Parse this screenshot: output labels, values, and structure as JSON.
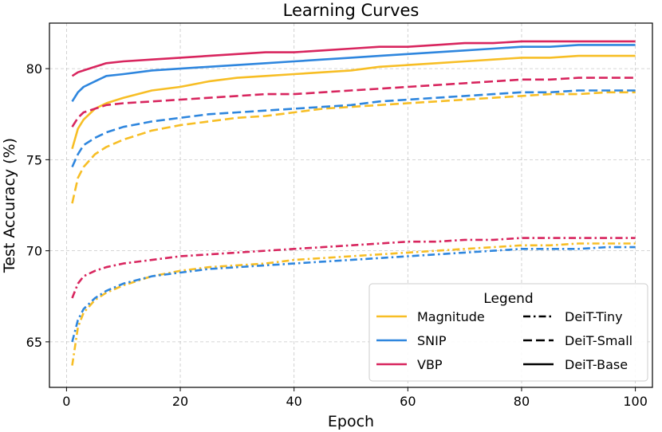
{
  "chart_data": {
    "type": "line",
    "title": "Learning Curves",
    "xlabel": "Epoch",
    "ylabel": "Test Accuracy (%)",
    "xlim": [
      -3,
      103
    ],
    "ylim": [
      62.5,
      82.5
    ],
    "xticks": [
      0,
      20,
      40,
      60,
      80,
      100
    ],
    "yticks": [
      65,
      70,
      75,
      80
    ],
    "grid": true,
    "legend": {
      "title": "Legend",
      "placement": "lower-right",
      "methods": [
        {
          "name": "Magnitude",
          "color": "#F7BE25"
        },
        {
          "name": "SNIP",
          "color": "#2E86DE"
        },
        {
          "name": "VBP",
          "color": "#D8255E"
        }
      ],
      "models": [
        {
          "name": "DeiT-Tiny",
          "style": "dashdot"
        },
        {
          "name": "DeiT-Small",
          "style": "dashed"
        },
        {
          "name": "DeiT-Base",
          "style": "solid"
        }
      ]
    },
    "series": [
      {
        "name": "Magnitude DeiT-Base",
        "method": "Magnitude",
        "model": "DeiT-Base",
        "color": "#F7BE25",
        "style": "solid",
        "x": [
          1,
          2,
          3,
          5,
          7,
          10,
          15,
          20,
          25,
          30,
          35,
          40,
          45,
          50,
          55,
          60,
          65,
          70,
          75,
          80,
          85,
          90,
          95,
          100
        ],
        "y": [
          75.6,
          76.7,
          77.2,
          77.8,
          78.1,
          78.4,
          78.8,
          79.0,
          79.3,
          79.5,
          79.6,
          79.7,
          79.8,
          79.9,
          80.1,
          80.2,
          80.3,
          80.4,
          80.5,
          80.6,
          80.6,
          80.7,
          80.7,
          80.7
        ]
      },
      {
        "name": "SNIP DeiT-Base",
        "method": "SNIP",
        "model": "DeiT-Base",
        "color": "#2E86DE",
        "style": "solid",
        "x": [
          1,
          2,
          3,
          5,
          7,
          10,
          15,
          20,
          25,
          30,
          35,
          40,
          45,
          50,
          55,
          60,
          65,
          70,
          75,
          80,
          85,
          90,
          95,
          100
        ],
        "y": [
          78.2,
          78.7,
          79.0,
          79.3,
          79.6,
          79.7,
          79.9,
          80.0,
          80.1,
          80.2,
          80.3,
          80.4,
          80.5,
          80.6,
          80.7,
          80.8,
          80.9,
          81.0,
          81.1,
          81.2,
          81.2,
          81.3,
          81.3,
          81.3
        ]
      },
      {
        "name": "VBP DeiT-Base",
        "method": "VBP",
        "model": "DeiT-Base",
        "color": "#D8255E",
        "style": "solid",
        "x": [
          1,
          2,
          3,
          5,
          7,
          10,
          15,
          20,
          25,
          30,
          35,
          40,
          45,
          50,
          55,
          60,
          65,
          70,
          75,
          80,
          85,
          90,
          95,
          100
        ],
        "y": [
          79.6,
          79.8,
          79.9,
          80.1,
          80.3,
          80.4,
          80.5,
          80.6,
          80.7,
          80.8,
          80.9,
          80.9,
          81.0,
          81.1,
          81.2,
          81.2,
          81.3,
          81.4,
          81.4,
          81.5,
          81.5,
          81.5,
          81.5,
          81.5
        ]
      },
      {
        "name": "Magnitude DeiT-Small",
        "method": "Magnitude",
        "model": "DeiT-Small",
        "color": "#F7BE25",
        "style": "dashed",
        "x": [
          1,
          2,
          3,
          5,
          7,
          10,
          15,
          20,
          25,
          30,
          35,
          40,
          45,
          50,
          55,
          60,
          65,
          70,
          75,
          80,
          85,
          90,
          95,
          100
        ],
        "y": [
          72.6,
          74.0,
          74.6,
          75.3,
          75.7,
          76.1,
          76.6,
          76.9,
          77.1,
          77.3,
          77.4,
          77.6,
          77.8,
          77.9,
          78.0,
          78.1,
          78.2,
          78.3,
          78.4,
          78.5,
          78.6,
          78.6,
          78.7,
          78.7
        ]
      },
      {
        "name": "SNIP DeiT-Small",
        "method": "SNIP",
        "model": "DeiT-Small",
        "color": "#2E86DE",
        "style": "dashed",
        "x": [
          1,
          2,
          3,
          5,
          7,
          10,
          15,
          20,
          25,
          30,
          35,
          40,
          45,
          50,
          55,
          60,
          65,
          70,
          75,
          80,
          85,
          90,
          95,
          100
        ],
        "y": [
          74.6,
          75.3,
          75.8,
          76.2,
          76.5,
          76.8,
          77.1,
          77.3,
          77.5,
          77.6,
          77.7,
          77.8,
          77.9,
          78.0,
          78.2,
          78.3,
          78.4,
          78.5,
          78.6,
          78.7,
          78.7,
          78.8,
          78.8,
          78.8
        ]
      },
      {
        "name": "VBP DeiT-Small",
        "method": "VBP",
        "model": "DeiT-Small",
        "color": "#D8255E",
        "style": "dashed",
        "x": [
          1,
          2,
          3,
          5,
          7,
          10,
          15,
          20,
          25,
          30,
          35,
          40,
          45,
          50,
          55,
          60,
          65,
          70,
          75,
          80,
          85,
          90,
          95,
          100
        ],
        "y": [
          76.8,
          77.3,
          77.6,
          77.8,
          78.0,
          78.1,
          78.2,
          78.3,
          78.4,
          78.5,
          78.6,
          78.6,
          78.7,
          78.8,
          78.9,
          79.0,
          79.1,
          79.2,
          79.3,
          79.4,
          79.4,
          79.5,
          79.5,
          79.5
        ]
      },
      {
        "name": "Magnitude DeiT-Tiny",
        "method": "Magnitude",
        "model": "DeiT-Tiny",
        "color": "#F7BE25",
        "style": "dashdot",
        "x": [
          1,
          2,
          3,
          5,
          7,
          10,
          15,
          20,
          25,
          30,
          35,
          40,
          45,
          50,
          55,
          60,
          65,
          70,
          75,
          80,
          85,
          90,
          95,
          100
        ],
        "y": [
          63.7,
          65.8,
          66.6,
          67.3,
          67.7,
          68.1,
          68.6,
          68.9,
          69.1,
          69.2,
          69.3,
          69.5,
          69.6,
          69.7,
          69.8,
          69.9,
          70.0,
          70.1,
          70.2,
          70.3,
          70.3,
          70.4,
          70.4,
          70.4
        ]
      },
      {
        "name": "SNIP DeiT-Tiny",
        "method": "SNIP",
        "model": "DeiT-Tiny",
        "color": "#2E86DE",
        "style": "dashdot",
        "x": [
          1,
          2,
          3,
          5,
          7,
          10,
          15,
          20,
          25,
          30,
          35,
          40,
          45,
          50,
          55,
          60,
          65,
          70,
          75,
          80,
          85,
          90,
          95,
          100
        ],
        "y": [
          65.0,
          66.2,
          66.8,
          67.4,
          67.8,
          68.2,
          68.6,
          68.8,
          69.0,
          69.1,
          69.2,
          69.3,
          69.4,
          69.5,
          69.6,
          69.7,
          69.8,
          69.9,
          70.0,
          70.1,
          70.1,
          70.1,
          70.2,
          70.2
        ]
      },
      {
        "name": "VBP DeiT-Tiny",
        "method": "VBP",
        "model": "DeiT-Tiny",
        "color": "#D8255E",
        "style": "dashdot",
        "x": [
          1,
          2,
          3,
          5,
          7,
          10,
          15,
          20,
          25,
          30,
          35,
          40,
          45,
          50,
          55,
          60,
          65,
          70,
          75,
          80,
          85,
          90,
          95,
          100
        ],
        "y": [
          67.4,
          68.2,
          68.6,
          68.9,
          69.1,
          69.3,
          69.5,
          69.7,
          69.8,
          69.9,
          70.0,
          70.1,
          70.2,
          70.3,
          70.4,
          70.5,
          70.5,
          70.6,
          70.6,
          70.7,
          70.7,
          70.7,
          70.7,
          70.7
        ]
      }
    ]
  }
}
